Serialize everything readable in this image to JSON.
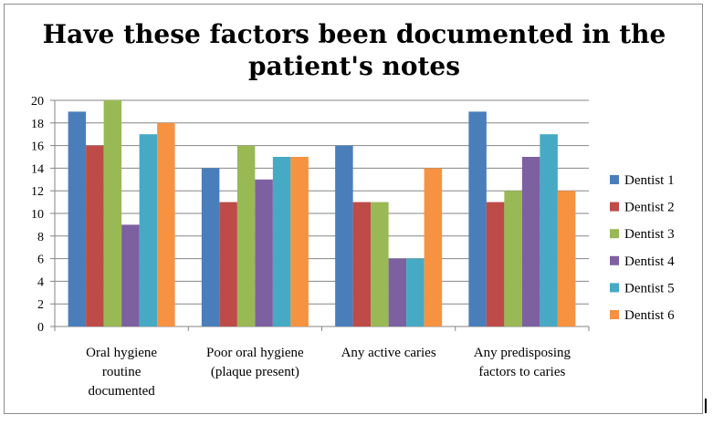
{
  "chart_data": {
    "type": "bar",
    "title": "Have these factors been documented in the patient's notes",
    "title_lines": [
      "Have these factors been documented in the",
      "patient's notes"
    ],
    "categories": [
      "Oral hygiene routine documented",
      "Poor oral hygiene (plaque present)",
      "Any active caries",
      "Any predisposing factors to caries"
    ],
    "category_lines": [
      [
        "Oral hygiene",
        "routine",
        "documented"
      ],
      [
        "Poor oral hygiene",
        "(plaque present)"
      ],
      [
        "Any active caries"
      ],
      [
        "Any predisposing",
        "factors to caries"
      ]
    ],
    "series": [
      {
        "name": "Dentist 1",
        "color": "#4A7EBB",
        "values": [
          19,
          14,
          16,
          19
        ]
      },
      {
        "name": "Dentist 2",
        "color": "#BE4B48",
        "values": [
          16,
          11,
          11,
          11
        ]
      },
      {
        "name": "Dentist 3",
        "color": "#98B954",
        "values": [
          20,
          16,
          11,
          12
        ]
      },
      {
        "name": "Dentist 4",
        "color": "#7D60A0",
        "values": [
          9,
          13,
          6,
          15
        ]
      },
      {
        "name": "Dentist 5",
        "color": "#46AAC5",
        "values": [
          17,
          15,
          6,
          17
        ]
      },
      {
        "name": "Dentist 6",
        "color": "#F69240",
        "values": [
          18,
          15,
          14,
          12
        ]
      }
    ],
    "ylim": [
      0,
      20
    ],
    "y_ticks": [
      0,
      2,
      4,
      6,
      8,
      10,
      12,
      14,
      16,
      18,
      20
    ],
    "xlabel": "",
    "ylabel": "",
    "grid": true,
    "legend_position": "right"
  }
}
